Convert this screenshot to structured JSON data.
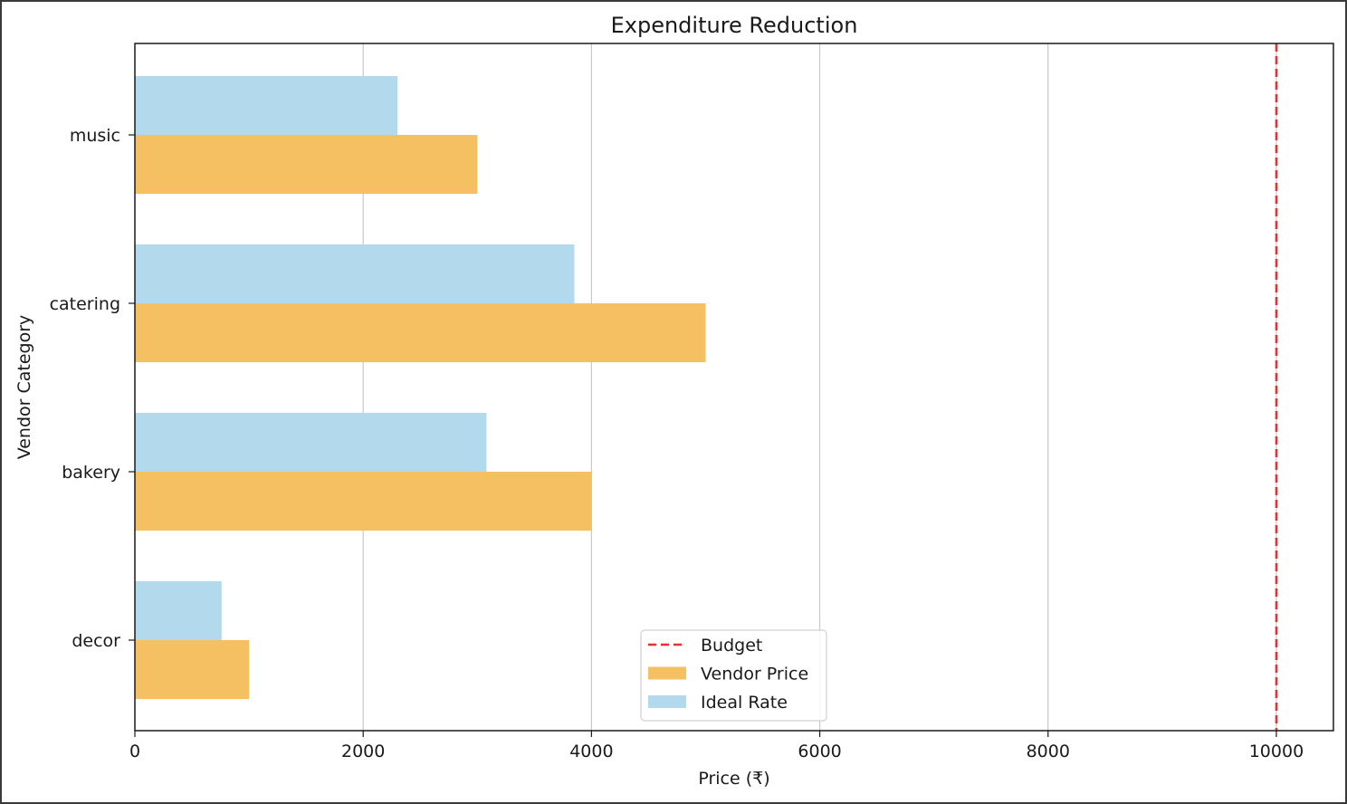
{
  "chart_data": {
    "type": "bar",
    "orientation": "horizontal",
    "title": "Expenditure Reduction",
    "xlabel": "Price (₹)",
    "ylabel": "Vendor Category",
    "categories": [
      "music",
      "catering",
      "bakery",
      "decor"
    ],
    "series": [
      {
        "name": "Vendor Price",
        "color": "#F5C061",
        "values": [
          3000,
          5000,
          4000,
          1000
        ]
      },
      {
        "name": "Ideal Rate",
        "color": "#B3DAEC",
        "values": [
          2300,
          3850,
          3080,
          760
        ]
      }
    ],
    "reference_lines": [
      {
        "name": "Budget",
        "value": 10000,
        "color": "#E8312F",
        "style": "dashed"
      }
    ],
    "xlim": [
      0,
      10500
    ],
    "xticks": [
      0,
      2000,
      4000,
      6000,
      8000,
      10000
    ],
    "grid": "x-axis",
    "legend_position": "lower center",
    "legend_entries": [
      "Budget",
      "Vendor Price",
      "Ideal Rate"
    ]
  }
}
